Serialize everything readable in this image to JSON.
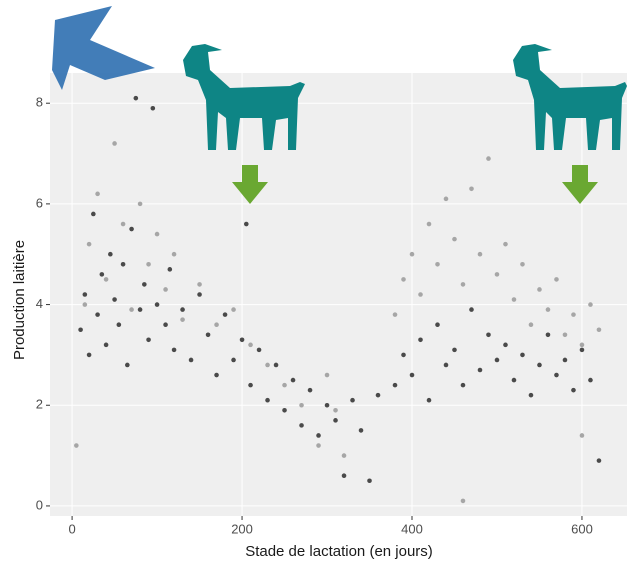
{
  "chart_data": {
    "type": "scatter",
    "x_label": "Stade de lactation (en jours)",
    "y_label": "Production laitière",
    "xlim": [
      -26,
      653
    ],
    "ylim": [
      -0.2,
      8.6
    ],
    "xticks": [
      0,
      200,
      400,
      600
    ],
    "yticks": [
      0,
      2,
      4,
      6,
      8
    ],
    "grid": true,
    "series": [
      {
        "color": "#4a4a4a",
        "x": [
          10,
          15,
          20,
          25,
          30,
          35,
          40,
          45,
          50,
          55,
          60,
          65,
          70,
          75,
          80,
          85,
          90,
          95,
          100,
          110,
          115,
          120,
          130,
          140,
          150,
          160,
          170,
          180,
          190,
          200,
          205,
          210,
          220,
          230,
          240,
          250,
          260,
          270,
          280,
          290,
          300,
          310,
          320,
          330,
          340,
          350,
          360,
          380,
          390,
          400,
          410,
          420,
          430,
          440,
          450,
          460,
          470,
          480,
          490,
          500,
          510,
          520,
          530,
          540,
          550,
          560,
          570,
          580,
          590,
          600,
          610,
          620
        ],
        "values": [
          3.5,
          4.2,
          3.0,
          5.8,
          3.8,
          4.6,
          3.2,
          5.0,
          4.1,
          3.6,
          4.8,
          2.8,
          5.5,
          8.1,
          3.9,
          4.4,
          3.3,
          7.9,
          4.0,
          3.6,
          4.7,
          3.1,
          3.9,
          2.9,
          4.2,
          3.4,
          2.6,
          3.8,
          2.9,
          3.3,
          5.6,
          2.4,
          3.1,
          2.1,
          2.8,
          1.9,
          2.5,
          1.6,
          2.3,
          1.4,
          2.0,
          1.7,
          0.6,
          2.1,
          1.5,
          0.5,
          2.2,
          2.4,
          3.0,
          2.6,
          3.3,
          2.1,
          3.6,
          2.8,
          3.1,
          2.4,
          3.9,
          2.7,
          3.4,
          2.9,
          3.2,
          2.5,
          3.0,
          2.2,
          2.8,
          3.4,
          2.6,
          2.9,
          2.3,
          3.1,
          2.5,
          0.9
        ]
      },
      {
        "color": "#a6a6a6",
        "x": [
          5,
          15,
          20,
          30,
          40,
          50,
          60,
          70,
          80,
          90,
          100,
          110,
          120,
          130,
          150,
          170,
          190,
          210,
          230,
          250,
          270,
          290,
          300,
          310,
          320,
          380,
          390,
          400,
          410,
          420,
          430,
          440,
          450,
          460,
          470,
          480,
          490,
          500,
          510,
          520,
          530,
          540,
          550,
          560,
          570,
          580,
          590,
          600,
          610,
          620,
          460,
          600
        ],
        "values": [
          1.2,
          4.0,
          5.2,
          6.2,
          4.5,
          7.2,
          5.6,
          3.9,
          6.0,
          4.8,
          5.4,
          4.3,
          5.0,
          3.7,
          4.4,
          3.6,
          3.9,
          3.2,
          2.8,
          2.4,
          2.0,
          1.2,
          2.6,
          1.9,
          1.0,
          3.8,
          4.5,
          5.0,
          4.2,
          5.6,
          4.8,
          6.1,
          5.3,
          4.4,
          6.3,
          5.0,
          6.9,
          4.6,
          5.2,
          4.1,
          4.8,
          3.6,
          4.3,
          3.9,
          4.5,
          3.4,
          3.8,
          3.2,
          4.0,
          3.5,
          0.1,
          1.4
        ]
      }
    ]
  }
}
